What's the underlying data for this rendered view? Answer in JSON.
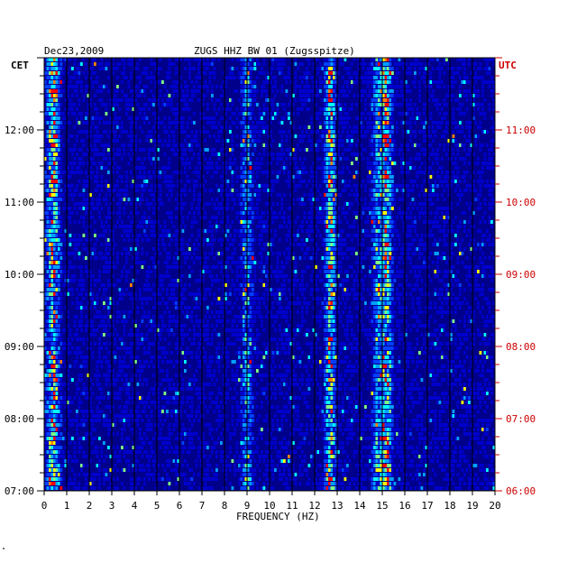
{
  "chart_data": {
    "type": "heatmap",
    "title": "ZUGS HHZ BW 01 (Zugsspitze)",
    "date": "Dec23,2009",
    "left_tz": "CET",
    "right_tz": "UTC",
    "xlabel": "FREQUENCY (HZ)",
    "xlim": [
      0,
      20
    ],
    "x_ticks": [
      "0",
      "1",
      "2",
      "3",
      "4",
      "5",
      "6",
      "7",
      "8",
      "9",
      "10",
      "11",
      "12",
      "13",
      "14",
      "15",
      "16",
      "17",
      "18",
      "19",
      "20"
    ],
    "y_ticks_left": [
      "07:00",
      "08:00",
      "09:00",
      "10:00",
      "11:00",
      "12:00"
    ],
    "y_ticks_right": [
      "06:00",
      "07:00",
      "08:00",
      "09:00",
      "10:00",
      "11:00"
    ],
    "y_range_cet": [
      "07:00",
      "13:00"
    ],
    "colors": {
      "background": "#00008b",
      "low": "#0000cd",
      "mid": "#00bfff",
      "high": "#ffff00",
      "peak": "#ff0000",
      "left_axis": "#000000",
      "right_axis": "#cc0000"
    },
    "energy_bands_hz": [
      {
        "center": 0.4,
        "strength": "high"
      },
      {
        "center": 9.0,
        "strength": "medium"
      },
      {
        "center": 12.7,
        "strength": "high"
      },
      {
        "center": 14.8,
        "strength": "medium"
      },
      {
        "center": 15.2,
        "strength": "high"
      }
    ]
  },
  "footnote": "\""
}
